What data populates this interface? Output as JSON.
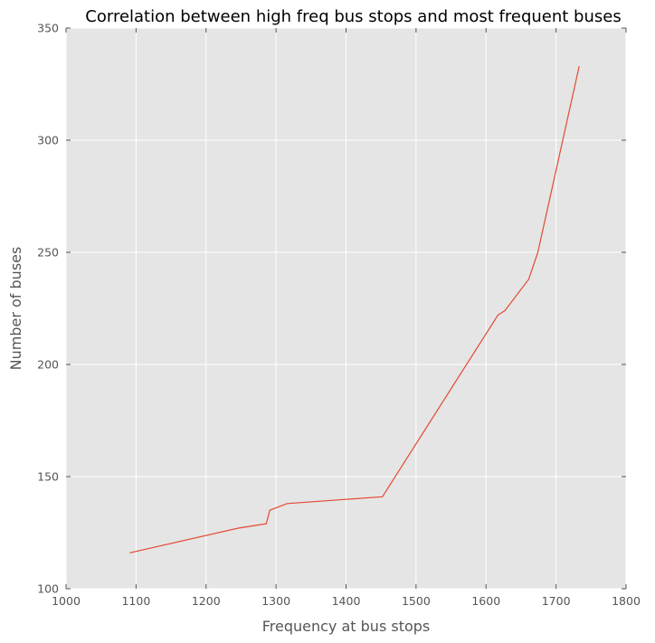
{
  "chart_data": {
    "type": "line",
    "title": "Correlation between high freq bus stops and most frequent buses",
    "xlabel": "Frequency at bus stops",
    "ylabel": "Number of buses",
    "xlim": [
      1000,
      1800
    ],
    "ylim": [
      100,
      350
    ],
    "xticks": [
      1000,
      1100,
      1200,
      1300,
      1400,
      1500,
      1600,
      1700,
      1800
    ],
    "yticks": [
      100,
      150,
      200,
      250,
      300,
      350
    ],
    "grid": true,
    "series": [
      {
        "color": "#E24A33",
        "x": [
          1091,
          1246,
          1286,
          1291,
          1316,
          1452,
          1617,
          1627,
          1661,
          1674,
          1733
        ],
        "y": [
          116,
          127,
          129,
          135,
          138,
          141,
          222,
          224,
          238,
          250,
          333
        ]
      }
    ]
  },
  "style": {
    "plot_background": "#E5E5E5",
    "grid_color": "#FFFFFF",
    "text_color": "#555555"
  }
}
